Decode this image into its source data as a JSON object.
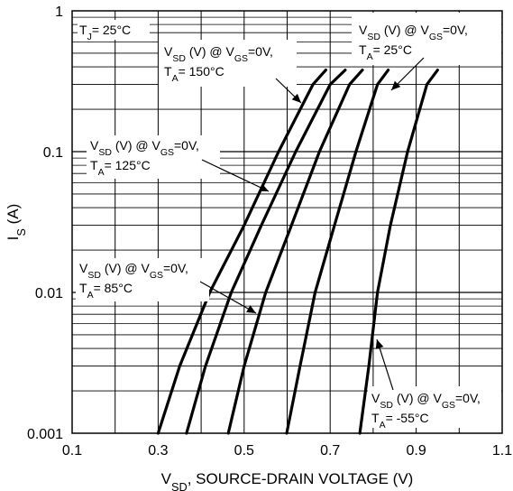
{
  "chart_data": {
    "type": "line",
    "xlabel": "V_SD, SOURCE-DRAIN VOLTAGE (V)",
    "ylabel": "I_S (A)",
    "x_scale": "linear",
    "y_scale": "log",
    "xlim": [
      0.1,
      1.1
    ],
    "ylim": [
      0.001,
      1
    ],
    "x_ticks": [
      "0.1",
      "0.3",
      "0.5",
      "0.7",
      "0.9",
      "1.1"
    ],
    "y_ticks": [
      "0.001",
      "0.01",
      "0.1",
      "1"
    ],
    "grid": true,
    "condition_label": {
      "main": "T",
      "sub": "J",
      "rest": "= 25°C"
    },
    "series": [
      {
        "points": [
          [
            0.3,
            0.001
          ],
          [
            0.35,
            0.003
          ],
          [
            0.42,
            0.01
          ],
          [
            0.5,
            0.03
          ],
          [
            0.58,
            0.1
          ],
          [
            0.66,
            0.3
          ],
          [
            0.69,
            0.38
          ]
        ]
      },
      {
        "points": [
          [
            0.366,
            0.001
          ],
          [
            0.41,
            0.003
          ],
          [
            0.47,
            0.01
          ],
          [
            0.54,
            0.03
          ],
          [
            0.62,
            0.1
          ],
          [
            0.7,
            0.3
          ],
          [
            0.735,
            0.38
          ]
        ]
      },
      {
        "points": [
          [
            0.463,
            0.001
          ],
          [
            0.5,
            0.003
          ],
          [
            0.55,
            0.01
          ],
          [
            0.61,
            0.03
          ],
          [
            0.675,
            0.1
          ],
          [
            0.745,
            0.3
          ],
          [
            0.775,
            0.38
          ]
        ]
      },
      {
        "points": [
          [
            0.599,
            0.001
          ],
          [
            0.63,
            0.003
          ],
          [
            0.665,
            0.01
          ],
          [
            0.71,
            0.03
          ],
          [
            0.76,
            0.1
          ],
          [
            0.81,
            0.3
          ],
          [
            0.835,
            0.38
          ]
        ]
      },
      {
        "points": [
          [
            0.769,
            0.001
          ],
          [
            0.79,
            0.003
          ],
          [
            0.81,
            0.01
          ],
          [
            0.84,
            0.03
          ],
          [
            0.88,
            0.1
          ],
          [
            0.925,
            0.3
          ],
          [
            0.95,
            0.38
          ]
        ]
      }
    ],
    "annotations": [
      {
        "lines": [
          {
            "t": "V",
            "s": "SD",
            "r": " (V) @ V"
          },
          {
            "t": "",
            "s": "GS",
            "r": "=0V,"
          }
        ],
        "line2": {
          "t": "T",
          "s": "A",
          "r": "= 150°C"
        }
      },
      {
        "lines": [
          {
            "t": "V",
            "s": "SD",
            "r": " (V) @ V"
          },
          {
            "t": "",
            "s": "GS",
            "r": "=0V,"
          }
        ],
        "line2": {
          "t": "T",
          "s": "A",
          "r": "= 125°C"
        }
      },
      {
        "lines": [
          {
            "t": "V",
            "s": "SD",
            "r": " (V) @ V"
          },
          {
            "t": "",
            "s": "GS",
            "r": "=0V,"
          }
        ],
        "line2": {
          "t": "T",
          "s": "A",
          "r": "= 85°C"
        }
      },
      {
        "lines": [
          {
            "t": "V",
            "s": "SD",
            "r": " (V) @ V"
          },
          {
            "t": "",
            "s": "GS",
            "r": "=0V,"
          }
        ],
        "line2": {
          "t": "T",
          "s": "A",
          "r": "= 25°C"
        }
      },
      {
        "lines": [
          {
            "t": "V",
            "s": "SD",
            "r": " (V) @ V"
          },
          {
            "t": "",
            "s": "GS",
            "r": "=0V,"
          }
        ],
        "line2": {
          "t": "T",
          "s": "A",
          "r": "= -55°C"
        }
      }
    ]
  }
}
